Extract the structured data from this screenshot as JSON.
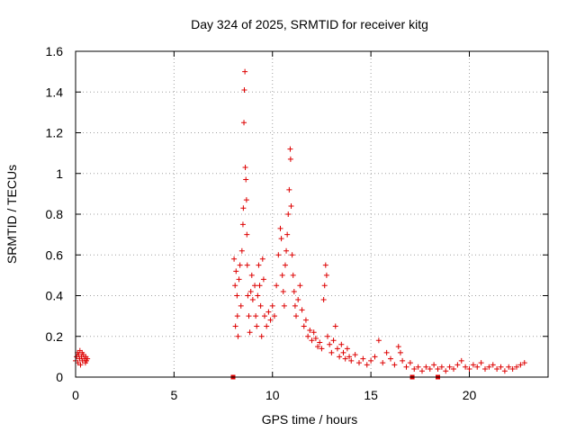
{
  "chart_data": {
    "type": "scatter",
    "title": "Day 324 of 2025, SRMTID for receiver kitg",
    "xlabel": "GPS time / hours",
    "ylabel": "SRMTID / TECUs",
    "xlim": [
      0,
      24
    ],
    "ylim": [
      0,
      1.6
    ],
    "xticks": [
      0,
      5,
      10,
      15,
      20
    ],
    "xtick_labels": [
      "0",
      "5",
      "10",
      "15",
      "20"
    ],
    "yticks": [
      0,
      0.2,
      0.4,
      0.6,
      0.8,
      1.0,
      1.2,
      1.4,
      1.6
    ],
    "ytick_labels": [
      "0",
      "0.2",
      "0.4",
      "0.6",
      "0.8",
      "1",
      "1.2",
      "1.4",
      "1.6"
    ],
    "grid": true,
    "marker": "+",
    "series_color": "#dd0000",
    "gap_markers_x": [
      8.0,
      17.1,
      18.4
    ],
    "series": [
      {
        "name": "SRMTID",
        "points": [
          [
            0.0,
            0.08
          ],
          [
            0.05,
            0.1
          ],
          [
            0.1,
            0.12
          ],
          [
            0.12,
            0.07
          ],
          [
            0.15,
            0.11
          ],
          [
            0.2,
            0.09
          ],
          [
            0.22,
            0.13
          ],
          [
            0.25,
            0.06
          ],
          [
            0.3,
            0.1
          ],
          [
            0.33,
            0.12
          ],
          [
            0.35,
            0.08
          ],
          [
            0.4,
            0.11
          ],
          [
            0.45,
            0.09
          ],
          [
            0.5,
            0.07
          ],
          [
            0.52,
            0.1
          ],
          [
            0.55,
            0.08
          ],
          [
            0.6,
            0.09
          ],
          [
            8.05,
            0.58
          ],
          [
            8.1,
            0.45
          ],
          [
            8.12,
            0.25
          ],
          [
            8.15,
            0.52
          ],
          [
            8.2,
            0.4
          ],
          [
            8.22,
            0.3
          ],
          [
            8.25,
            0.2
          ],
          [
            8.3,
            0.48
          ],
          [
            8.35,
            0.55
          ],
          [
            8.4,
            0.35
          ],
          [
            8.45,
            0.62
          ],
          [
            8.5,
            0.75
          ],
          [
            8.52,
            0.83
          ],
          [
            8.55,
            1.25
          ],
          [
            8.57,
            1.41
          ],
          [
            8.6,
            1.5
          ],
          [
            8.62,
            1.03
          ],
          [
            8.65,
            0.97
          ],
          [
            8.68,
            0.87
          ],
          [
            8.7,
            0.7
          ],
          [
            8.72,
            0.55
          ],
          [
            8.75,
            0.4
          ],
          [
            8.8,
            0.3
          ],
          [
            8.85,
            0.22
          ],
          [
            8.9,
            0.42
          ],
          [
            8.95,
            0.5
          ],
          [
            9.0,
            0.38
          ],
          [
            9.1,
            0.45
          ],
          [
            9.15,
            0.3
          ],
          [
            9.2,
            0.25
          ],
          [
            9.25,
            0.4
          ],
          [
            9.3,
            0.55
          ],
          [
            9.35,
            0.45
          ],
          [
            9.4,
            0.35
          ],
          [
            9.45,
            0.2
          ],
          [
            9.5,
            0.58
          ],
          [
            9.55,
            0.48
          ],
          [
            9.6,
            0.3
          ],
          [
            9.7,
            0.25
          ],
          [
            9.8,
            0.32
          ],
          [
            9.9,
            0.28
          ],
          [
            10.0,
            0.35
          ],
          [
            10.1,
            0.3
          ],
          [
            10.2,
            0.45
          ],
          [
            10.3,
            0.6
          ],
          [
            10.4,
            0.73
          ],
          [
            10.45,
            0.68
          ],
          [
            10.5,
            0.5
          ],
          [
            10.55,
            0.42
          ],
          [
            10.6,
            0.35
          ],
          [
            10.65,
            0.55
          ],
          [
            10.7,
            0.62
          ],
          [
            10.75,
            0.7
          ],
          [
            10.8,
            0.8
          ],
          [
            10.85,
            0.92
          ],
          [
            10.9,
            1.12
          ],
          [
            10.92,
            1.07
          ],
          [
            10.95,
            0.84
          ],
          [
            11.0,
            0.6
          ],
          [
            11.05,
            0.5
          ],
          [
            11.1,
            0.42
          ],
          [
            11.15,
            0.35
          ],
          [
            11.2,
            0.3
          ],
          [
            11.3,
            0.38
          ],
          [
            11.4,
            0.45
          ],
          [
            11.5,
            0.33
          ],
          [
            11.6,
            0.25
          ],
          [
            11.7,
            0.28
          ],
          [
            11.8,
            0.2
          ],
          [
            11.9,
            0.23
          ],
          [
            12.0,
            0.18
          ],
          [
            12.1,
            0.22
          ],
          [
            12.2,
            0.19
          ],
          [
            12.3,
            0.15
          ],
          [
            12.4,
            0.17
          ],
          [
            12.5,
            0.14
          ],
          [
            12.6,
            0.38
          ],
          [
            12.65,
            0.45
          ],
          [
            12.7,
            0.55
          ],
          [
            12.75,
            0.5
          ],
          [
            12.8,
            0.2
          ],
          [
            12.9,
            0.16
          ],
          [
            13.0,
            0.12
          ],
          [
            13.1,
            0.18
          ],
          [
            13.2,
            0.25
          ],
          [
            13.3,
            0.14
          ],
          [
            13.4,
            0.1
          ],
          [
            13.5,
            0.16
          ],
          [
            13.6,
            0.12
          ],
          [
            13.7,
            0.09
          ],
          [
            13.8,
            0.14
          ],
          [
            13.9,
            0.1
          ],
          [
            14.0,
            0.08
          ],
          [
            14.2,
            0.11
          ],
          [
            14.4,
            0.07
          ],
          [
            14.6,
            0.09
          ],
          [
            14.8,
            0.06
          ],
          [
            15.0,
            0.08
          ],
          [
            15.2,
            0.1
          ],
          [
            15.4,
            0.18
          ],
          [
            15.6,
            0.07
          ],
          [
            15.8,
            0.12
          ],
          [
            16.0,
            0.09
          ],
          [
            16.2,
            0.06
          ],
          [
            16.4,
            0.15
          ],
          [
            16.5,
            0.12
          ],
          [
            16.6,
            0.08
          ],
          [
            16.8,
            0.05
          ],
          [
            17.0,
            0.07
          ],
          [
            17.2,
            0.04
          ],
          [
            17.4,
            0.05
          ],
          [
            17.6,
            0.03
          ],
          [
            17.8,
            0.05
          ],
          [
            18.0,
            0.04
          ],
          [
            18.2,
            0.06
          ],
          [
            18.4,
            0.04
          ],
          [
            18.6,
            0.05
          ],
          [
            18.8,
            0.03
          ],
          [
            19.0,
            0.05
          ],
          [
            19.2,
            0.04
          ],
          [
            19.4,
            0.06
          ],
          [
            19.6,
            0.08
          ],
          [
            19.8,
            0.05
          ],
          [
            20.0,
            0.04
          ],
          [
            20.2,
            0.06
          ],
          [
            20.4,
            0.05
          ],
          [
            20.6,
            0.07
          ],
          [
            20.8,
            0.04
          ],
          [
            21.0,
            0.05
          ],
          [
            21.2,
            0.06
          ],
          [
            21.4,
            0.04
          ],
          [
            21.6,
            0.05
          ],
          [
            21.8,
            0.03
          ],
          [
            22.0,
            0.05
          ],
          [
            22.2,
            0.04
          ],
          [
            22.4,
            0.05
          ],
          [
            22.6,
            0.06
          ],
          [
            22.8,
            0.07
          ]
        ]
      }
    ]
  }
}
